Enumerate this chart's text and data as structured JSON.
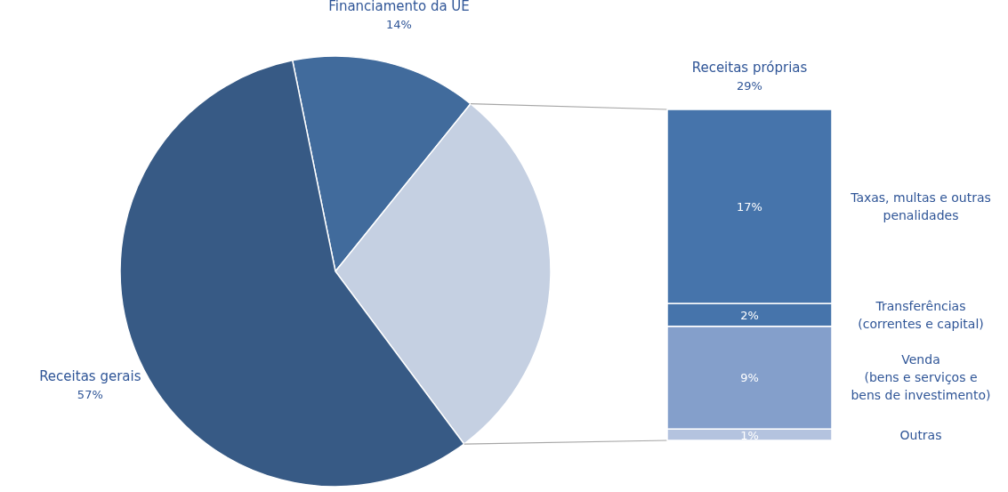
{
  "chart_data": [
    {
      "type": "pie",
      "categories": [
        "Financiamento da UE",
        "Receitas próprias",
        "Receitas gerais"
      ],
      "values": [
        14,
        29,
        57
      ],
      "colors": [
        "#416b9c",
        "#c5d0e2",
        "#375a85"
      ],
      "value_labels": [
        "14%",
        "29%",
        "57%"
      ]
    },
    {
      "type": "bar",
      "stacked": true,
      "categories": [
        null
      ],
      "series": [
        {
          "name": "Outras",
          "color": "#b4c3df",
          "values": [
            1
          ],
          "value_labels": [
            "1%"
          ]
        },
        {
          "name": "Venda (bens e serviços e bens de investimento)",
          "color": "#849fcb",
          "values": [
            9
          ],
          "value_labels": [
            "9%"
          ]
        },
        {
          "name": "Transferências (correntes e capital)",
          "color": "#4674ab",
          "values": [
            2
          ],
          "value_labels": [
            "2%"
          ]
        },
        {
          "name": "Taxas, multas e outras penalidades",
          "color": "#4674ab",
          "values": [
            17
          ],
          "value_labels": [
            "17%"
          ]
        }
      ]
    }
  ]
}
